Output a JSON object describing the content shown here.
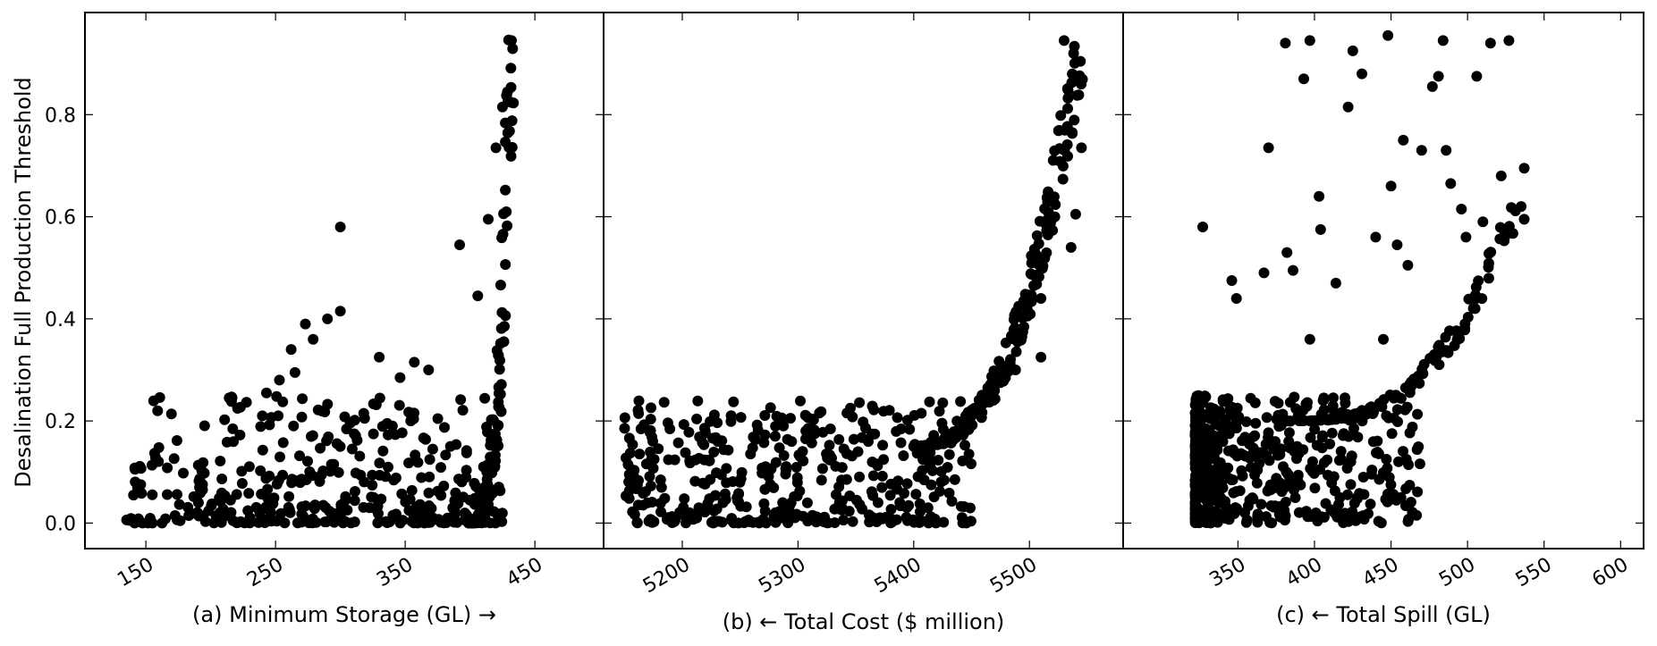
{
  "ylabel": "Desalination Full Production Threshold",
  "yticks": [
    "0.0",
    "0.2",
    "0.4",
    "0.6",
    "0.8"
  ],
  "colors": {
    "marker": "#000000",
    "axis": "#000000",
    "background": "#ffffff"
  },
  "chart_data": [
    {
      "type": "scatter",
      "panel": "(a)",
      "xlabel": "Minimum Storage (GL)",
      "xlabel_arrow": "→",
      "ylabel": "Desalination Full Production Threshold",
      "xticks": [
        "150",
        "250",
        "350",
        "450"
      ],
      "xlim": [
        103,
        503
      ],
      "ylim": [
        -0.05,
        1.0
      ],
      "generator": {
        "seed": 11,
        "background": {
          "count": 380,
          "x_min": 135,
          "x_max": 425,
          "y_min": 0.0,
          "y_max": 0.25,
          "x_power": 1.0,
          "y_power": 2.2
        },
        "curve": {
          "count": 140,
          "x_from": 400,
          "x_to": 432,
          "y_from": 0.0,
          "y_to": 0.95,
          "power": 3.2,
          "jitter_x": 3
        },
        "extra": [
          [
            300,
            0.58
          ],
          [
            290,
            0.4
          ],
          [
            300,
            0.415
          ],
          [
            330,
            0.325
          ],
          [
            318,
            0.215
          ],
          [
            273,
            0.39
          ],
          [
            262,
            0.34
          ],
          [
            265,
            0.295
          ],
          [
            253,
            0.28
          ],
          [
            243,
            0.255
          ],
          [
            252,
            0.21
          ],
          [
            279,
            0.36
          ],
          [
            346,
            0.285
          ],
          [
            357,
            0.315
          ],
          [
            368,
            0.3
          ],
          [
            392,
            0.545
          ],
          [
            406,
            0.445
          ],
          [
            420,
            0.735
          ],
          [
            414,
            0.595
          ],
          [
            425,
            0.815
          ],
          [
            432,
            0.945
          ]
        ]
      }
    },
    {
      "type": "scatter",
      "panel": "(b)",
      "xlabel": "Total Cost ($ million)",
      "xlabel_arrow": "←",
      "xticks": [
        "5200",
        "5300",
        "5400",
        "5500"
      ],
      "xlim": [
        5132,
        5581
      ],
      "ylim": [
        -0.05,
        1.0
      ],
      "generator": {
        "seed": 23,
        "background": {
          "count": 420,
          "x_min": 5150,
          "x_max": 5450,
          "y_min": 0.0,
          "y_max": 0.24,
          "x_power": 1.0,
          "y_power": 1.6
        },
        "curve": {
          "count": 220,
          "x_from": 5400,
          "x_to": 5545,
          "y_from": 0.15,
          "y_to": 0.95,
          "power": 2.6,
          "jitter_x": 7
        },
        "extra": [
          [
            5445,
            0.21
          ],
          [
            5462,
            0.25
          ],
          [
            5488,
            0.3
          ],
          [
            5510,
            0.44
          ],
          [
            5510,
            0.325
          ],
          [
            5536,
            0.54
          ],
          [
            5540,
            0.605
          ],
          [
            5545,
            0.735
          ],
          [
            5530,
            0.945
          ],
          [
            5540,
            0.875
          ]
        ]
      }
    },
    {
      "type": "scatter",
      "panel": "(c)",
      "xlabel": "Total Spill (GL)",
      "xlabel_arrow": "←",
      "xticks": [
        "350",
        "400",
        "450",
        "500",
        "550",
        "600"
      ],
      "xlim": [
        275,
        615
      ],
      "ylim": [
        -0.05,
        1.0
      ],
      "generator": {
        "seed": 37,
        "background": {
          "count": 520,
          "x_min": 322,
          "x_max": 470,
          "y_min": 0.0,
          "y_max": 0.25,
          "x_power": 2.4,
          "y_power": 1.3
        },
        "curve": {
          "count": 120,
          "x_from": 380,
          "x_to": 532,
          "y_from": 0.2,
          "y_to": 0.62,
          "power": 3.0,
          "jitter_x": 6
        },
        "extra": [
          [
            327,
            0.58
          ],
          [
            346,
            0.475
          ],
          [
            349,
            0.44
          ],
          [
            367,
            0.49
          ],
          [
            370,
            0.735
          ],
          [
            381,
            0.94
          ],
          [
            397,
            0.945
          ],
          [
            393,
            0.87
          ],
          [
            382,
            0.53
          ],
          [
            386,
            0.495
          ],
          [
            397,
            0.36
          ],
          [
            403,
            0.64
          ],
          [
            404,
            0.575
          ],
          [
            414,
            0.47
          ],
          [
            422,
            0.815
          ],
          [
            425,
            0.925
          ],
          [
            431,
            0.88
          ],
          [
            440,
            0.56
          ],
          [
            445,
            0.36
          ],
          [
            448,
            0.955
          ],
          [
            450,
            0.66
          ],
          [
            454,
            0.545
          ],
          [
            458,
            0.75
          ],
          [
            461,
            0.505
          ],
          [
            470,
            0.73
          ],
          [
            477,
            0.855
          ],
          [
            481,
            0.875
          ],
          [
            484,
            0.945
          ],
          [
            486,
            0.73
          ],
          [
            489,
            0.665
          ],
          [
            496,
            0.615
          ],
          [
            499,
            0.56
          ],
          [
            506,
            0.875
          ],
          [
            510,
            0.59
          ],
          [
            515,
            0.94
          ],
          [
            522,
            0.68
          ],
          [
            527,
            0.945
          ],
          [
            535,
            0.62
          ],
          [
            537,
            0.695
          ],
          [
            537,
            0.595
          ],
          [
            447,
            0.125
          ],
          [
            460,
            0.125
          ],
          [
            432,
            0.09
          ]
        ]
      }
    }
  ]
}
